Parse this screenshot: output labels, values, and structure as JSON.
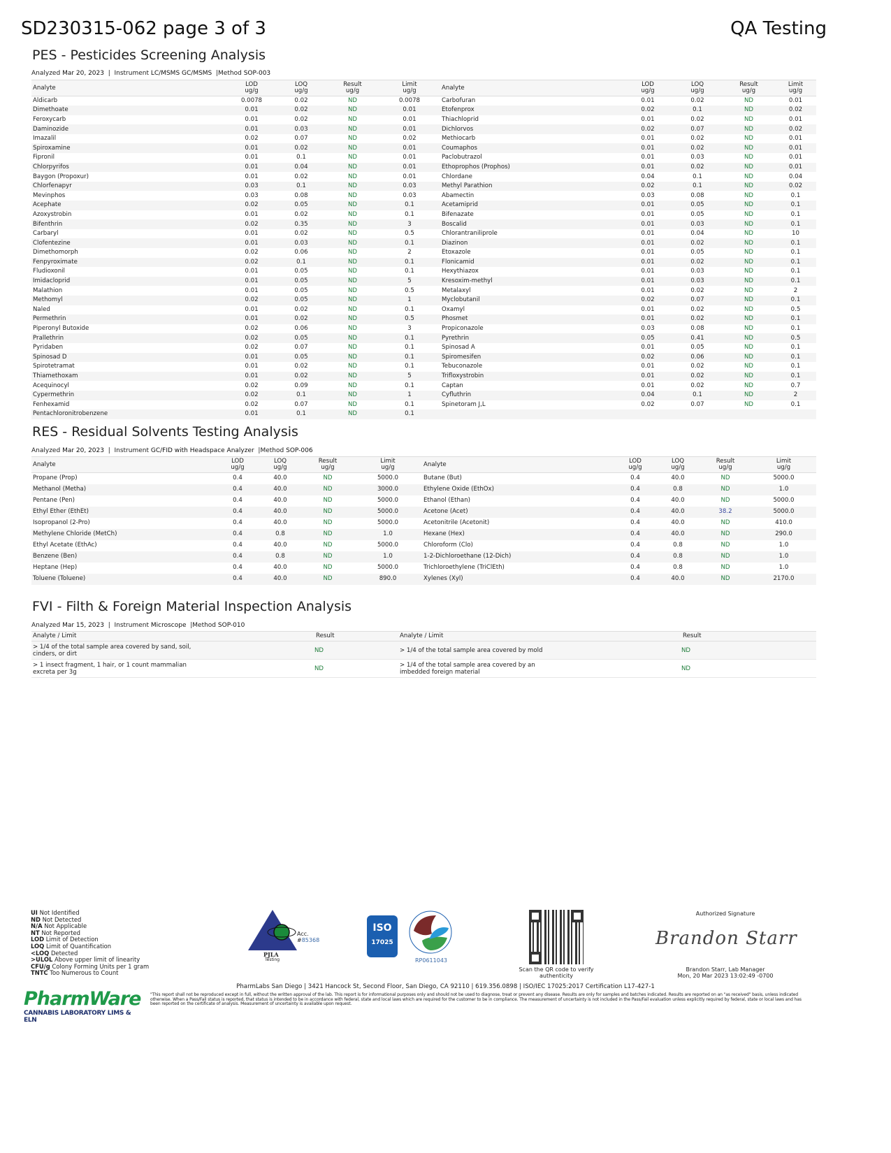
{
  "header": {
    "title": "SD230315-062 page 3 of 3",
    "lab": "QA Testing"
  },
  "pes": {
    "heading": "PES - Pesticides Screening Analysis",
    "meta": {
      "analyzed_label": "Analyzed",
      "analyzed": "Mar 20, 2023",
      "instrument_label": "Instrument",
      "instrument": "LC/MSMS GC/MSMS",
      "method_label": "Method",
      "method": "SOP-003"
    },
    "columns": [
      "Analyte",
      "LOD ug/g",
      "LOQ ug/g",
      "Result ug/g",
      "Limit ug/g"
    ],
    "left": [
      [
        "Aldicarb",
        "0.0078",
        "0.02",
        "ND",
        "0.0078"
      ],
      [
        "Dimethoate",
        "0.01",
        "0.02",
        "ND",
        "0.01"
      ],
      [
        "Feroxycarb",
        "0.01",
        "0.02",
        "ND",
        "0.01"
      ],
      [
        "Daminozide",
        "0.01",
        "0.03",
        "ND",
        "0.01"
      ],
      [
        "Imazalil",
        "0.02",
        "0.07",
        "ND",
        "0.02"
      ],
      [
        "Spiroxamine",
        "0.01",
        "0.02",
        "ND",
        "0.01"
      ],
      [
        "Fipronil",
        "0.01",
        "0.1",
        "ND",
        "0.01"
      ],
      [
        "Chlorpyrifos",
        "0.01",
        "0.04",
        "ND",
        "0.01"
      ],
      [
        "Baygon (Propoxur)",
        "0.01",
        "0.02",
        "ND",
        "0.01"
      ],
      [
        "Chlorfenapyr",
        "0.03",
        "0.1",
        "ND",
        "0.03"
      ],
      [
        "Mevinphos",
        "0.03",
        "0.08",
        "ND",
        "0.03"
      ],
      [
        "Acephate",
        "0.02",
        "0.05",
        "ND",
        "0.1"
      ],
      [
        "Azoxystrobin",
        "0.01",
        "0.02",
        "ND",
        "0.1"
      ],
      [
        "Bifenthrin",
        "0.02",
        "0.35",
        "ND",
        "3"
      ],
      [
        "Carbaryl",
        "0.01",
        "0.02",
        "ND",
        "0.5"
      ],
      [
        "Clofentezine",
        "0.01",
        "0.03",
        "ND",
        "0.1"
      ],
      [
        "Dimethomorph",
        "0.02",
        "0.06",
        "ND",
        "2"
      ],
      [
        "Fenpyroximate",
        "0.02",
        "0.1",
        "ND",
        "0.1"
      ],
      [
        "Fludioxonil",
        "0.01",
        "0.05",
        "ND",
        "0.1"
      ],
      [
        "Imidacloprid",
        "0.01",
        "0.05",
        "ND",
        "5"
      ],
      [
        "Malathion",
        "0.01",
        "0.05",
        "ND",
        "0.5"
      ],
      [
        "Methomyl",
        "0.02",
        "0.05",
        "ND",
        "1"
      ],
      [
        "Naled",
        "0.01",
        "0.02",
        "ND",
        "0.1"
      ],
      [
        "Permethrin",
        "0.01",
        "0.02",
        "ND",
        "0.5"
      ],
      [
        "Piperonyl Butoxide",
        "0.02",
        "0.06",
        "ND",
        "3"
      ],
      [
        "Prallethrin",
        "0.02",
        "0.05",
        "ND",
        "0.1"
      ],
      [
        "Pyridaben",
        "0.02",
        "0.07",
        "ND",
        "0.1"
      ],
      [
        "Spinosad D",
        "0.01",
        "0.05",
        "ND",
        "0.1"
      ],
      [
        "Spirotetramat",
        "0.01",
        "0.02",
        "ND",
        "0.1"
      ],
      [
        "Thiamethoxam",
        "0.01",
        "0.02",
        "ND",
        "5"
      ],
      [
        "Acequinocyl",
        "0.02",
        "0.09",
        "ND",
        "0.1"
      ],
      [
        "Cypermethrin",
        "0.02",
        "0.1",
        "ND",
        "1"
      ],
      [
        "Fenhexamid",
        "0.02",
        "0.07",
        "ND",
        "0.1"
      ],
      [
        "Pentachloronitrobenzene",
        "0.01",
        "0.1",
        "ND",
        "0.1"
      ]
    ],
    "right": [
      [
        "Carbofuran",
        "0.01",
        "0.02",
        "ND",
        "0.01"
      ],
      [
        "Etofenprox",
        "0.02",
        "0.1",
        "ND",
        "0.02"
      ],
      [
        "Thiachloprid",
        "0.01",
        "0.02",
        "ND",
        "0.01"
      ],
      [
        "Dichlorvos",
        "0.02",
        "0.07",
        "ND",
        "0.02"
      ],
      [
        "Methiocarb",
        "0.01",
        "0.02",
        "ND",
        "0.01"
      ],
      [
        "Coumaphos",
        "0.01",
        "0.02",
        "ND",
        "0.01"
      ],
      [
        "Paclobutrazol",
        "0.01",
        "0.03",
        "ND",
        "0.01"
      ],
      [
        "Ethoprophos (Prophos)",
        "0.01",
        "0.02",
        "ND",
        "0.01"
      ],
      [
        "Chlordane",
        "0.04",
        "0.1",
        "ND",
        "0.04"
      ],
      [
        "Methyl Parathion",
        "0.02",
        "0.1",
        "ND",
        "0.02"
      ],
      [
        "Abamectin",
        "0.03",
        "0.08",
        "ND",
        "0.1"
      ],
      [
        "Acetamiprid",
        "0.01",
        "0.05",
        "ND",
        "0.1"
      ],
      [
        "Bifenazate",
        "0.01",
        "0.05",
        "ND",
        "0.1"
      ],
      [
        "Boscalid",
        "0.01",
        "0.03",
        "ND",
        "0.1"
      ],
      [
        "Chlorantraniliprole",
        "0.01",
        "0.04",
        "ND",
        "10"
      ],
      [
        "Diazinon",
        "0.01",
        "0.02",
        "ND",
        "0.1"
      ],
      [
        "Etoxazole",
        "0.01",
        "0.05",
        "ND",
        "0.1"
      ],
      [
        "Flonicamid",
        "0.01",
        "0.02",
        "ND",
        "0.1"
      ],
      [
        "Hexythiazox",
        "0.01",
        "0.03",
        "ND",
        "0.1"
      ],
      [
        "Kresoxim-methyl",
        "0.01",
        "0.03",
        "ND",
        "0.1"
      ],
      [
        "Metalaxyl",
        "0.01",
        "0.02",
        "ND",
        "2"
      ],
      [
        "Myclobutanil",
        "0.02",
        "0.07",
        "ND",
        "0.1"
      ],
      [
        "Oxamyl",
        "0.01",
        "0.02",
        "ND",
        "0.5"
      ],
      [
        "Phosmet",
        "0.01",
        "0.02",
        "ND",
        "0.1"
      ],
      [
        "Propiconazole",
        "0.03",
        "0.08",
        "ND",
        "0.1"
      ],
      [
        "Pyrethrin",
        "0.05",
        "0.41",
        "ND",
        "0.5"
      ],
      [
        "Spinosad A",
        "0.01",
        "0.05",
        "ND",
        "0.1"
      ],
      [
        "Spiromesifen",
        "0.02",
        "0.06",
        "ND",
        "0.1"
      ],
      [
        "Tebuconazole",
        "0.01",
        "0.02",
        "ND",
        "0.1"
      ],
      [
        "Trifloxystrobin",
        "0.01",
        "0.02",
        "ND",
        "0.1"
      ],
      [
        "Captan",
        "0.01",
        "0.02",
        "ND",
        "0.7"
      ],
      [
        "Cyfluthrin",
        "0.04",
        "0.1",
        "ND",
        "2"
      ],
      [
        "Spinetoram J,L",
        "0.02",
        "0.07",
        "ND",
        "0.1"
      ]
    ]
  },
  "res": {
    "heading": "RES - Residual Solvents Testing Analysis",
    "meta": {
      "analyzed_label": "Analyzed",
      "analyzed": "Mar 20, 2023",
      "instrument_label": "Instrument",
      "instrument": "GC/FID with Headspace Analyzer",
      "method_label": "Method",
      "method": "SOP-006"
    },
    "columns": [
      "Analyte",
      "LOD ug/g",
      "LOQ ug/g",
      "Result ug/g",
      "Limit ug/g"
    ],
    "left": [
      [
        "Propane (Prop)",
        "0.4",
        "40.0",
        "ND",
        "5000.0"
      ],
      [
        "Methanol (Metha)",
        "0.4",
        "40.0",
        "ND",
        "3000.0"
      ],
      [
        "Pentane (Pen)",
        "0.4",
        "40.0",
        "ND",
        "5000.0"
      ],
      [
        "Ethyl Ether (EthEt)",
        "0.4",
        "40.0",
        "ND",
        "5000.0"
      ],
      [
        "Isopropanol (2-Pro)",
        "0.4",
        "40.0",
        "ND",
        "5000.0"
      ],
      [
        "Methylene Chloride (MetCh)",
        "0.4",
        "0.8",
        "ND",
        "1.0"
      ],
      [
        "Ethyl Acetate (EthAc)",
        "0.4",
        "40.0",
        "ND",
        "5000.0"
      ],
      [
        "Benzene (Ben)",
        "0.4",
        "0.8",
        "ND",
        "1.0"
      ],
      [
        "Heptane (Hep)",
        "0.4",
        "40.0",
        "ND",
        "5000.0"
      ],
      [
        "Toluene (Toluene)",
        "0.4",
        "40.0",
        "ND",
        "890.0"
      ]
    ],
    "right": [
      [
        "Butane (But)",
        "0.4",
        "40.0",
        "ND",
        "5000.0"
      ],
      [
        "Ethylene Oxide (EthOx)",
        "0.4",
        "0.8",
        "ND",
        "1.0"
      ],
      [
        "Ethanol (Ethan)",
        "0.4",
        "40.0",
        "ND",
        "5000.0"
      ],
      [
        "Acetone (Acet)",
        "0.4",
        "40.0",
        "38.2",
        "5000.0"
      ],
      [
        "Acetonitrile (Acetonit)",
        "0.4",
        "40.0",
        "ND",
        "410.0"
      ],
      [
        "Hexane (Hex)",
        "0.4",
        "40.0",
        "ND",
        "290.0"
      ],
      [
        "Chloroform (Clo)",
        "0.4",
        "0.8",
        "ND",
        "1.0"
      ],
      [
        "1-2-Dichloroethane (12-Dich)",
        "0.4",
        "0.8",
        "ND",
        "1.0"
      ],
      [
        "Trichloroethylene (TriClEth)",
        "0.4",
        "0.8",
        "ND",
        "1.0"
      ],
      [
        "Xylenes (Xyl)",
        "0.4",
        "40.0",
        "ND",
        "2170.0"
      ]
    ]
  },
  "fvi": {
    "heading": "FVI - Filth & Foreign Material Inspection Analysis",
    "meta": {
      "analyzed_label": "Analyzed",
      "analyzed": "Mar 15, 2023",
      "instrument_label": "Instrument",
      "instrument": "Microscope",
      "method_label": "Method",
      "method": "SOP-010"
    },
    "columns": [
      "Analyte / Limit",
      "Result",
      "Analyte / Limit",
      "Result"
    ],
    "rows": [
      [
        "> 1/4 of the total sample area covered by sand, soil, cinders, or dirt",
        "ND",
        "> 1/4 of the total sample area covered by mold",
        "ND"
      ],
      [
        "> 1 insect fragment, 1 hair, or 1 count mammalian excreta per 3g",
        "ND",
        "> 1/4 of the total sample area covered by an imbedded foreign material",
        "ND"
      ]
    ]
  },
  "legend": [
    [
      "UI",
      "Not Identified"
    ],
    [
      "ND",
      "Not Detected"
    ],
    [
      "N/A",
      "Not Applicable"
    ],
    [
      "NT",
      "Not Reported"
    ],
    [
      "LOD",
      "Limit of Detection"
    ],
    [
      "LOQ",
      "Limit of Quantification"
    ],
    [
      "<LOQ",
      "Detected"
    ],
    [
      ">ULOL",
      "Above upper limit of linearity"
    ],
    [
      "CFU/g",
      "Colony Forming Units per 1 gram"
    ],
    [
      "TNTC",
      "Too Numerous to Count"
    ]
  ],
  "accreditation": {
    "pjla_text": "PJLA",
    "pjla_sub": "Testing",
    "acc_label": "Acc. #",
    "acc_number": "85368",
    "iso_text": "ISO",
    "iso_number": "17025",
    "dea_number": "RP0611043"
  },
  "qr": {
    "caption": "Scan the QR code to verify authenticity"
  },
  "signature": {
    "label": "Authorized Signature",
    "signature_text": "Brandon Starr",
    "name": "Brandon Starr, Lab Manager",
    "date": "Mon, 20 Mar 2023 13:02:49 -0700"
  },
  "footer": {
    "address": "PharmLabs San Diego | 3421 Hancock St, Second Floor, San Diego, CA 92110 | 619.356.0898 | ISO/IEC 17025:2017 Certification L17-427-1",
    "disclaimer": "\"This report shall not be reproduced except in full, without the written approval of the lab. This report is for informational purposes only and should not be used to diagnose, treat or prevent any disease. Results are only for samples and batches indicated. Results are reported on an \"as received\" basis, unless indicated otherwise. When a Pass/Fail status is reported, that status is intended to be in accordance with federal, state and local laws which are required for the customer to be in compliance. The measurement of uncertainty is not included in the Pass/Fail evaluation unless explicitly required by federal, state or local laws and has been reported on the certificate of analysis. Measurement of uncertainty is available upon request.",
    "brand": "PharmWare",
    "brand_sub": "CANNABIS LABORATORY LIMS & ELN"
  },
  "colors": {
    "nd": "#1e7d3a",
    "positive": "#3a4aa0",
    "brand_green": "#1f9a4a",
    "brand_navy": "#1d2f6b"
  }
}
